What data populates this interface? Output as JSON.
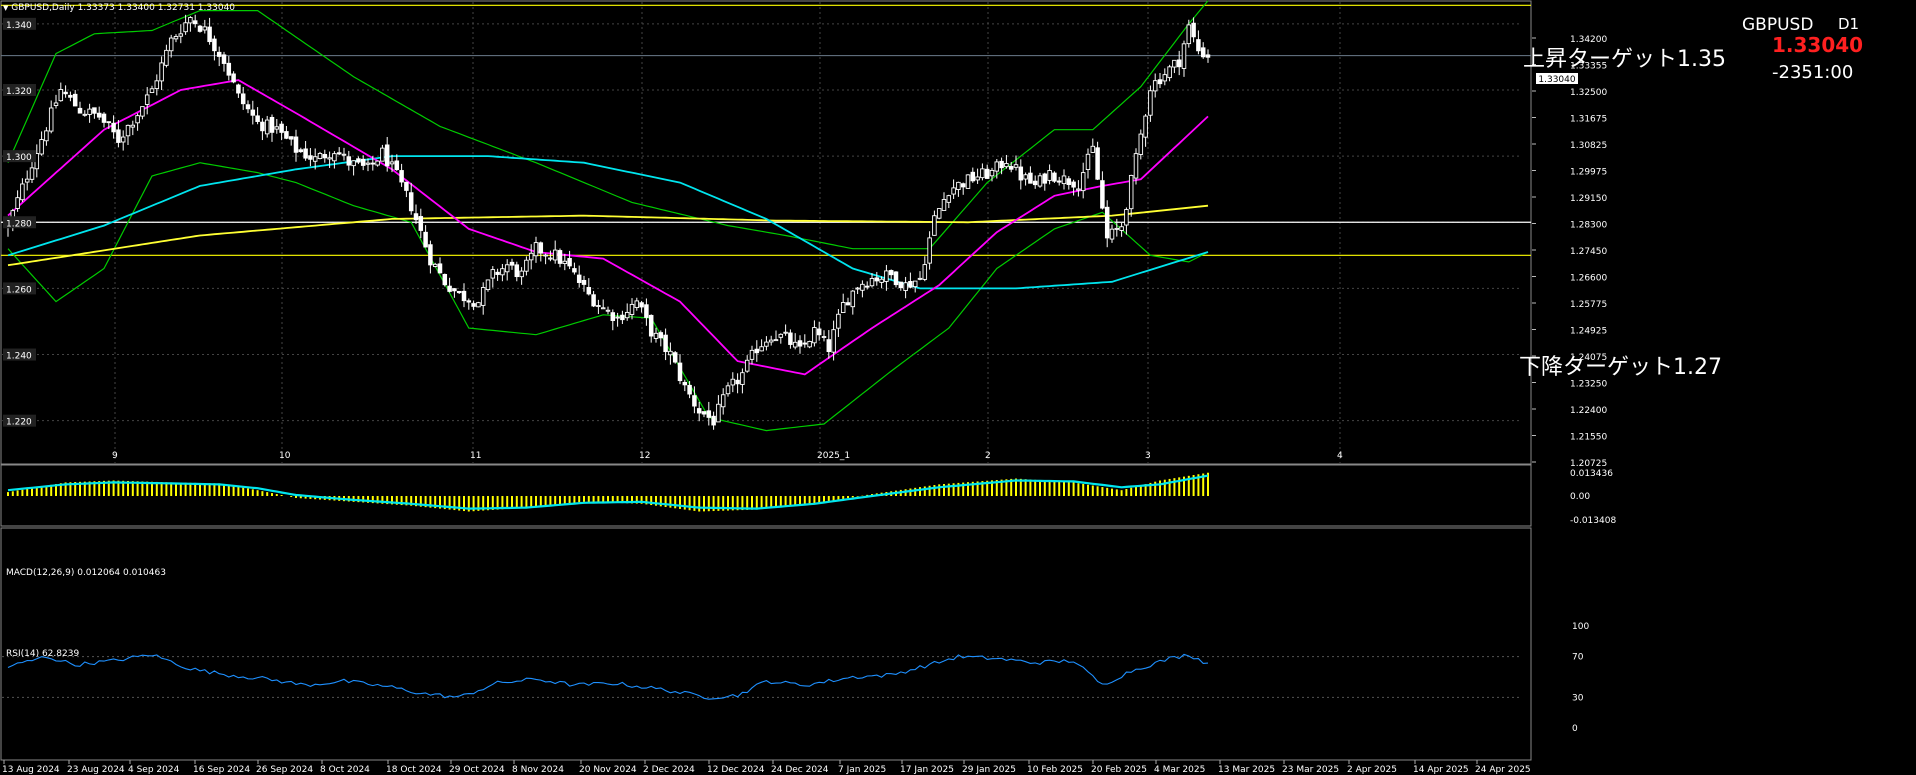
{
  "header": {
    "symbol_info": "GBPUSD,Daily  1.33373 1.33400 1.32731 1.33040",
    "symbol": "GBPUSD",
    "timeframe": "D1",
    "price": "1.33040",
    "countdown": "-2351:00"
  },
  "annotations": {
    "up_target": "上昇ターゲット1.35",
    "down_target": "下降ターゲット1.27"
  },
  "macd_label": "MACD(12,26,9) 0.012064 0.010463",
  "rsi_label": "RSI(14) 62.8239",
  "colors": {
    "background": "#000000",
    "candle": "#ffffff",
    "bollinger": "#00cc00",
    "ma_short": "#ff00ff",
    "ma_mid": "#00e5ee",
    "ma_long": "#ffff33",
    "hline": "#ffff00",
    "macd_hist": "#ffff00",
    "macd_signal": "#00e5ee",
    "rsi": "#1e90ff"
  },
  "chart_data": {
    "type": "candlestick",
    "ylim": [
      1.2075,
      1.346
    ],
    "price_scale_right": [
      "1.34200",
      "1.33355",
      "1.32500",
      "1.31675",
      "1.30825",
      "1.29975",
      "1.29150",
      "1.28300",
      "1.27450",
      "1.26600",
      "1.25775",
      "1.24925",
      "1.24075",
      "1.23250",
      "1.22400",
      "1.21550",
      "1.20725"
    ],
    "price_scale_left": [
      "1.340",
      "1.320",
      "1.300",
      "1.280",
      "1.260",
      "1.240",
      "1.220"
    ],
    "month_labels": [
      "9",
      "10",
      "11",
      "12",
      "2025_1",
      "2",
      "3",
      "4"
    ],
    "date_labels": [
      "13 Aug 2024",
      "23 Aug 2024",
      "4 Sep 2024",
      "16 Sep 2024",
      "26 Sep 2024",
      "8 Oct 2024",
      "18 Oct 2024",
      "29 Oct 2024",
      "8 Nov 2024",
      "20 Nov 2024",
      "2 Dec 2024",
      "12 Dec 2024",
      "24 Dec 2024",
      "7 Jan 2025",
      "17 Jan 2025",
      "29 Jan 2025",
      "10 Feb 2025",
      "20 Feb 2025",
      "4 Mar 2025",
      "13 Mar 2025",
      "23 Mar 2025",
      "2 Apr 2025",
      "14 Apr 2025",
      "24 Apr 2025"
    ],
    "horizontal_lines": [
      1.3456,
      1.28,
      1.27
    ],
    "close_anchors": [
      [
        0,
        1.279
      ],
      [
        5,
        1.298
      ],
      [
        11,
        1.32
      ],
      [
        15,
        1.314
      ],
      [
        19,
        1.312
      ],
      [
        23,
        1.305
      ],
      [
        27,
        1.313
      ],
      [
        30,
        1.32
      ],
      [
        34,
        1.335
      ],
      [
        38,
        1.342
      ],
      [
        41,
        1.338
      ],
      [
        45,
        1.329
      ],
      [
        48,
        1.318
      ],
      [
        52,
        1.31
      ],
      [
        56,
        1.308
      ],
      [
        60,
        1.302
      ],
      [
        64,
        1.299
      ],
      [
        68,
        1.302
      ],
      [
        71,
        1.298
      ],
      [
        75,
        1.296
      ],
      [
        78,
        1.301
      ],
      [
        81,
        1.294
      ],
      [
        84,
        1.285
      ],
      [
        88,
        1.269
      ],
      [
        91,
        1.262
      ],
      [
        94,
        1.258
      ],
      [
        98,
        1.256
      ],
      [
        101,
        1.264
      ],
      [
        104,
        1.267
      ],
      [
        107,
        1.264
      ],
      [
        110,
        1.272
      ],
      [
        114,
        1.27
      ],
      [
        117,
        1.266
      ],
      [
        121,
        1.258
      ],
      [
        124,
        1.254
      ],
      [
        127,
        1.251
      ],
      [
        131,
        1.256
      ],
      [
        134,
        1.247
      ],
      [
        138,
        1.24
      ],
      [
        141,
        1.23
      ],
      [
        144,
        1.223
      ],
      [
        147,
        1.22
      ],
      [
        150,
        1.229
      ],
      [
        153,
        1.234
      ],
      [
        156,
        1.242
      ],
      [
        159,
        1.246
      ],
      [
        162,
        1.245
      ],
      [
        165,
        1.241
      ],
      [
        168,
        1.247
      ],
      [
        171,
        1.242
      ],
      [
        174,
        1.255
      ],
      [
        177,
        1.261
      ],
      [
        180,
        1.263
      ],
      [
        184,
        1.264
      ],
      [
        187,
        1.261
      ],
      [
        190,
        1.263
      ],
      [
        193,
        1.281
      ],
      [
        196,
        1.29
      ],
      [
        199,
        1.292
      ],
      [
        202,
        1.294
      ],
      [
        205,
        1.295
      ],
      [
        208,
        1.299
      ],
      [
        211,
        1.294
      ],
      [
        214,
        1.291
      ],
      [
        217,
        1.295
      ],
      [
        220,
        1.293
      ],
      [
        223,
        1.292
      ],
      [
        226,
        1.302
      ],
      [
        229,
        1.275
      ],
      [
        232,
        1.279
      ],
      [
        235,
        1.299
      ],
      [
        238,
        1.321
      ],
      [
        241,
        1.325
      ],
      [
        244,
        1.329
      ],
      [
        246,
        1.339
      ],
      [
        248,
        1.332
      ],
      [
        250,
        1.3304
      ]
    ],
    "ma_short_anchors": [
      [
        0,
        1.282
      ],
      [
        20,
        1.308
      ],
      [
        36,
        1.32
      ],
      [
        48,
        1.323
      ],
      [
        60,
        1.313
      ],
      [
        80,
        1.296
      ],
      [
        96,
        1.278
      ],
      [
        110,
        1.271
      ],
      [
        124,
        1.269
      ],
      [
        140,
        1.256
      ],
      [
        152,
        1.238
      ],
      [
        166,
        1.234
      ],
      [
        180,
        1.248
      ],
      [
        194,
        1.261
      ],
      [
        206,
        1.277
      ],
      [
        218,
        1.288
      ],
      [
        228,
        1.291
      ],
      [
        236,
        1.293
      ],
      [
        250,
        1.312
      ]
    ],
    "ma_mid_anchors": [
      [
        0,
        1.27
      ],
      [
        20,
        1.279
      ],
      [
        40,
        1.291
      ],
      [
        60,
        1.296
      ],
      [
        80,
        1.3
      ],
      [
        100,
        1.3
      ],
      [
        120,
        1.298
      ],
      [
        140,
        1.292
      ],
      [
        158,
        1.281
      ],
      [
        176,
        1.266
      ],
      [
        190,
        1.26
      ],
      [
        210,
        1.26
      ],
      [
        230,
        1.262
      ],
      [
        250,
        1.271
      ]
    ],
    "ma_long_anchors": [
      [
        0,
        1.267
      ],
      [
        40,
        1.276
      ],
      [
        80,
        1.281
      ],
      [
        120,
        1.282
      ],
      [
        160,
        1.2805
      ],
      [
        200,
        1.28
      ],
      [
        230,
        1.282
      ],
      [
        250,
        1.285
      ]
    ],
    "bb_upper_anchors": [
      [
        0,
        1.298
      ],
      [
        10,
        1.331
      ],
      [
        18,
        1.337
      ],
      [
        30,
        1.338
      ],
      [
        40,
        1.344
      ],
      [
        52,
        1.344
      ],
      [
        60,
        1.336
      ],
      [
        72,
        1.324
      ],
      [
        90,
        1.309
      ],
      [
        110,
        1.298
      ],
      [
        130,
        1.286
      ],
      [
        150,
        1.279
      ],
      [
        162,
        1.276
      ],
      [
        176,
        1.272
      ],
      [
        192,
        1.272
      ],
      [
        204,
        1.292
      ],
      [
        218,
        1.308
      ],
      [
        226,
        1.308
      ],
      [
        236,
        1.321
      ],
      [
        246,
        1.34
      ],
      [
        250,
        1.347
      ]
    ],
    "bb_lower_anchors": [
      [
        0,
        1.272
      ],
      [
        10,
        1.256
      ],
      [
        20,
        1.266
      ],
      [
        30,
        1.294
      ],
      [
        40,
        1.298
      ],
      [
        52,
        1.295
      ],
      [
        60,
        1.292
      ],
      [
        72,
        1.285
      ],
      [
        84,
        1.28
      ],
      [
        96,
        1.248
      ],
      [
        110,
        1.246
      ],
      [
        124,
        1.252
      ],
      [
        134,
        1.251
      ],
      [
        146,
        1.221
      ],
      [
        158,
        1.217
      ],
      [
        170,
        1.219
      ],
      [
        184,
        1.235
      ],
      [
        196,
        1.248
      ],
      [
        206,
        1.266
      ],
      [
        218,
        1.278
      ],
      [
        228,
        1.283
      ],
      [
        238,
        1.27
      ],
      [
        246,
        1.268
      ],
      [
        250,
        1.271
      ]
    ],
    "macd": {
      "label": "MACD(12,26,9) 0.012064 0.010463",
      "scale": [
        "0.013436",
        "0.00",
        "-0.013408"
      ],
      "ylim": [
        -0.0134,
        0.0134
      ],
      "hist_anchors": [
        [
          0,
          0.002
        ],
        [
          12,
          0.007
        ],
        [
          22,
          0.008
        ],
        [
          34,
          0.007
        ],
        [
          44,
          0.0065
        ],
        [
          52,
          0.003
        ],
        [
          60,
          -0.001
        ],
        [
          72,
          -0.003
        ],
        [
          84,
          -0.005
        ],
        [
          96,
          -0.008
        ],
        [
          108,
          -0.006
        ],
        [
          120,
          -0.003
        ],
        [
          132,
          -0.004
        ],
        [
          144,
          -0.008
        ],
        [
          156,
          -0.007
        ],
        [
          168,
          -0.004
        ],
        [
          180,
          0.001
        ],
        [
          194,
          0.006
        ],
        [
          210,
          0.009
        ],
        [
          222,
          0.007
        ],
        [
          232,
          0.003
        ],
        [
          240,
          0.008
        ],
        [
          250,
          0.012
        ]
      ],
      "signal_anchors": [
        [
          0,
          0.003
        ],
        [
          12,
          0.006
        ],
        [
          22,
          0.007
        ],
        [
          34,
          0.0065
        ],
        [
          44,
          0.006
        ],
        [
          52,
          0.004
        ],
        [
          60,
          0.0005
        ],
        [
          72,
          -0.002
        ],
        [
          84,
          -0.004
        ],
        [
          96,
          -0.0065
        ],
        [
          108,
          -0.006
        ],
        [
          120,
          -0.0035
        ],
        [
          132,
          -0.003
        ],
        [
          144,
          -0.006
        ],
        [
          156,
          -0.0065
        ],
        [
          168,
          -0.004
        ],
        [
          180,
          0.0
        ],
        [
          194,
          0.0045
        ],
        [
          210,
          0.008
        ],
        [
          222,
          0.0075
        ],
        [
          232,
          0.0045
        ],
        [
          240,
          0.006
        ],
        [
          250,
          0.0105
        ]
      ]
    },
    "rsi": {
      "label": "RSI(14) 62.8239",
      "scale": [
        "100",
        "70",
        "30",
        "0"
      ],
      "ylim": [
        0,
        100
      ],
      "anchors": [
        [
          0,
          60
        ],
        [
          8,
          70
        ],
        [
          14,
          62
        ],
        [
          22,
          66
        ],
        [
          30,
          72
        ],
        [
          38,
          58
        ],
        [
          46,
          52
        ],
        [
          54,
          48
        ],
        [
          62,
          42
        ],
        [
          70,
          46
        ],
        [
          80,
          40
        ],
        [
          86,
          34
        ],
        [
          94,
          30
        ],
        [
          102,
          44
        ],
        [
          110,
          48
        ],
        [
          118,
          42
        ],
        [
          126,
          44
        ],
        [
          136,
          38
        ],
        [
          146,
          30
        ],
        [
          152,
          32
        ],
        [
          158,
          46
        ],
        [
          166,
          42
        ],
        [
          176,
          50
        ],
        [
          184,
          52
        ],
        [
          192,
          62
        ],
        [
          198,
          70
        ],
        [
          206,
          68
        ],
        [
          214,
          64
        ],
        [
          222,
          66
        ],
        [
          228,
          42
        ],
        [
          234,
          56
        ],
        [
          242,
          68
        ],
        [
          246,
          72
        ],
        [
          250,
          63
        ]
      ]
    }
  }
}
